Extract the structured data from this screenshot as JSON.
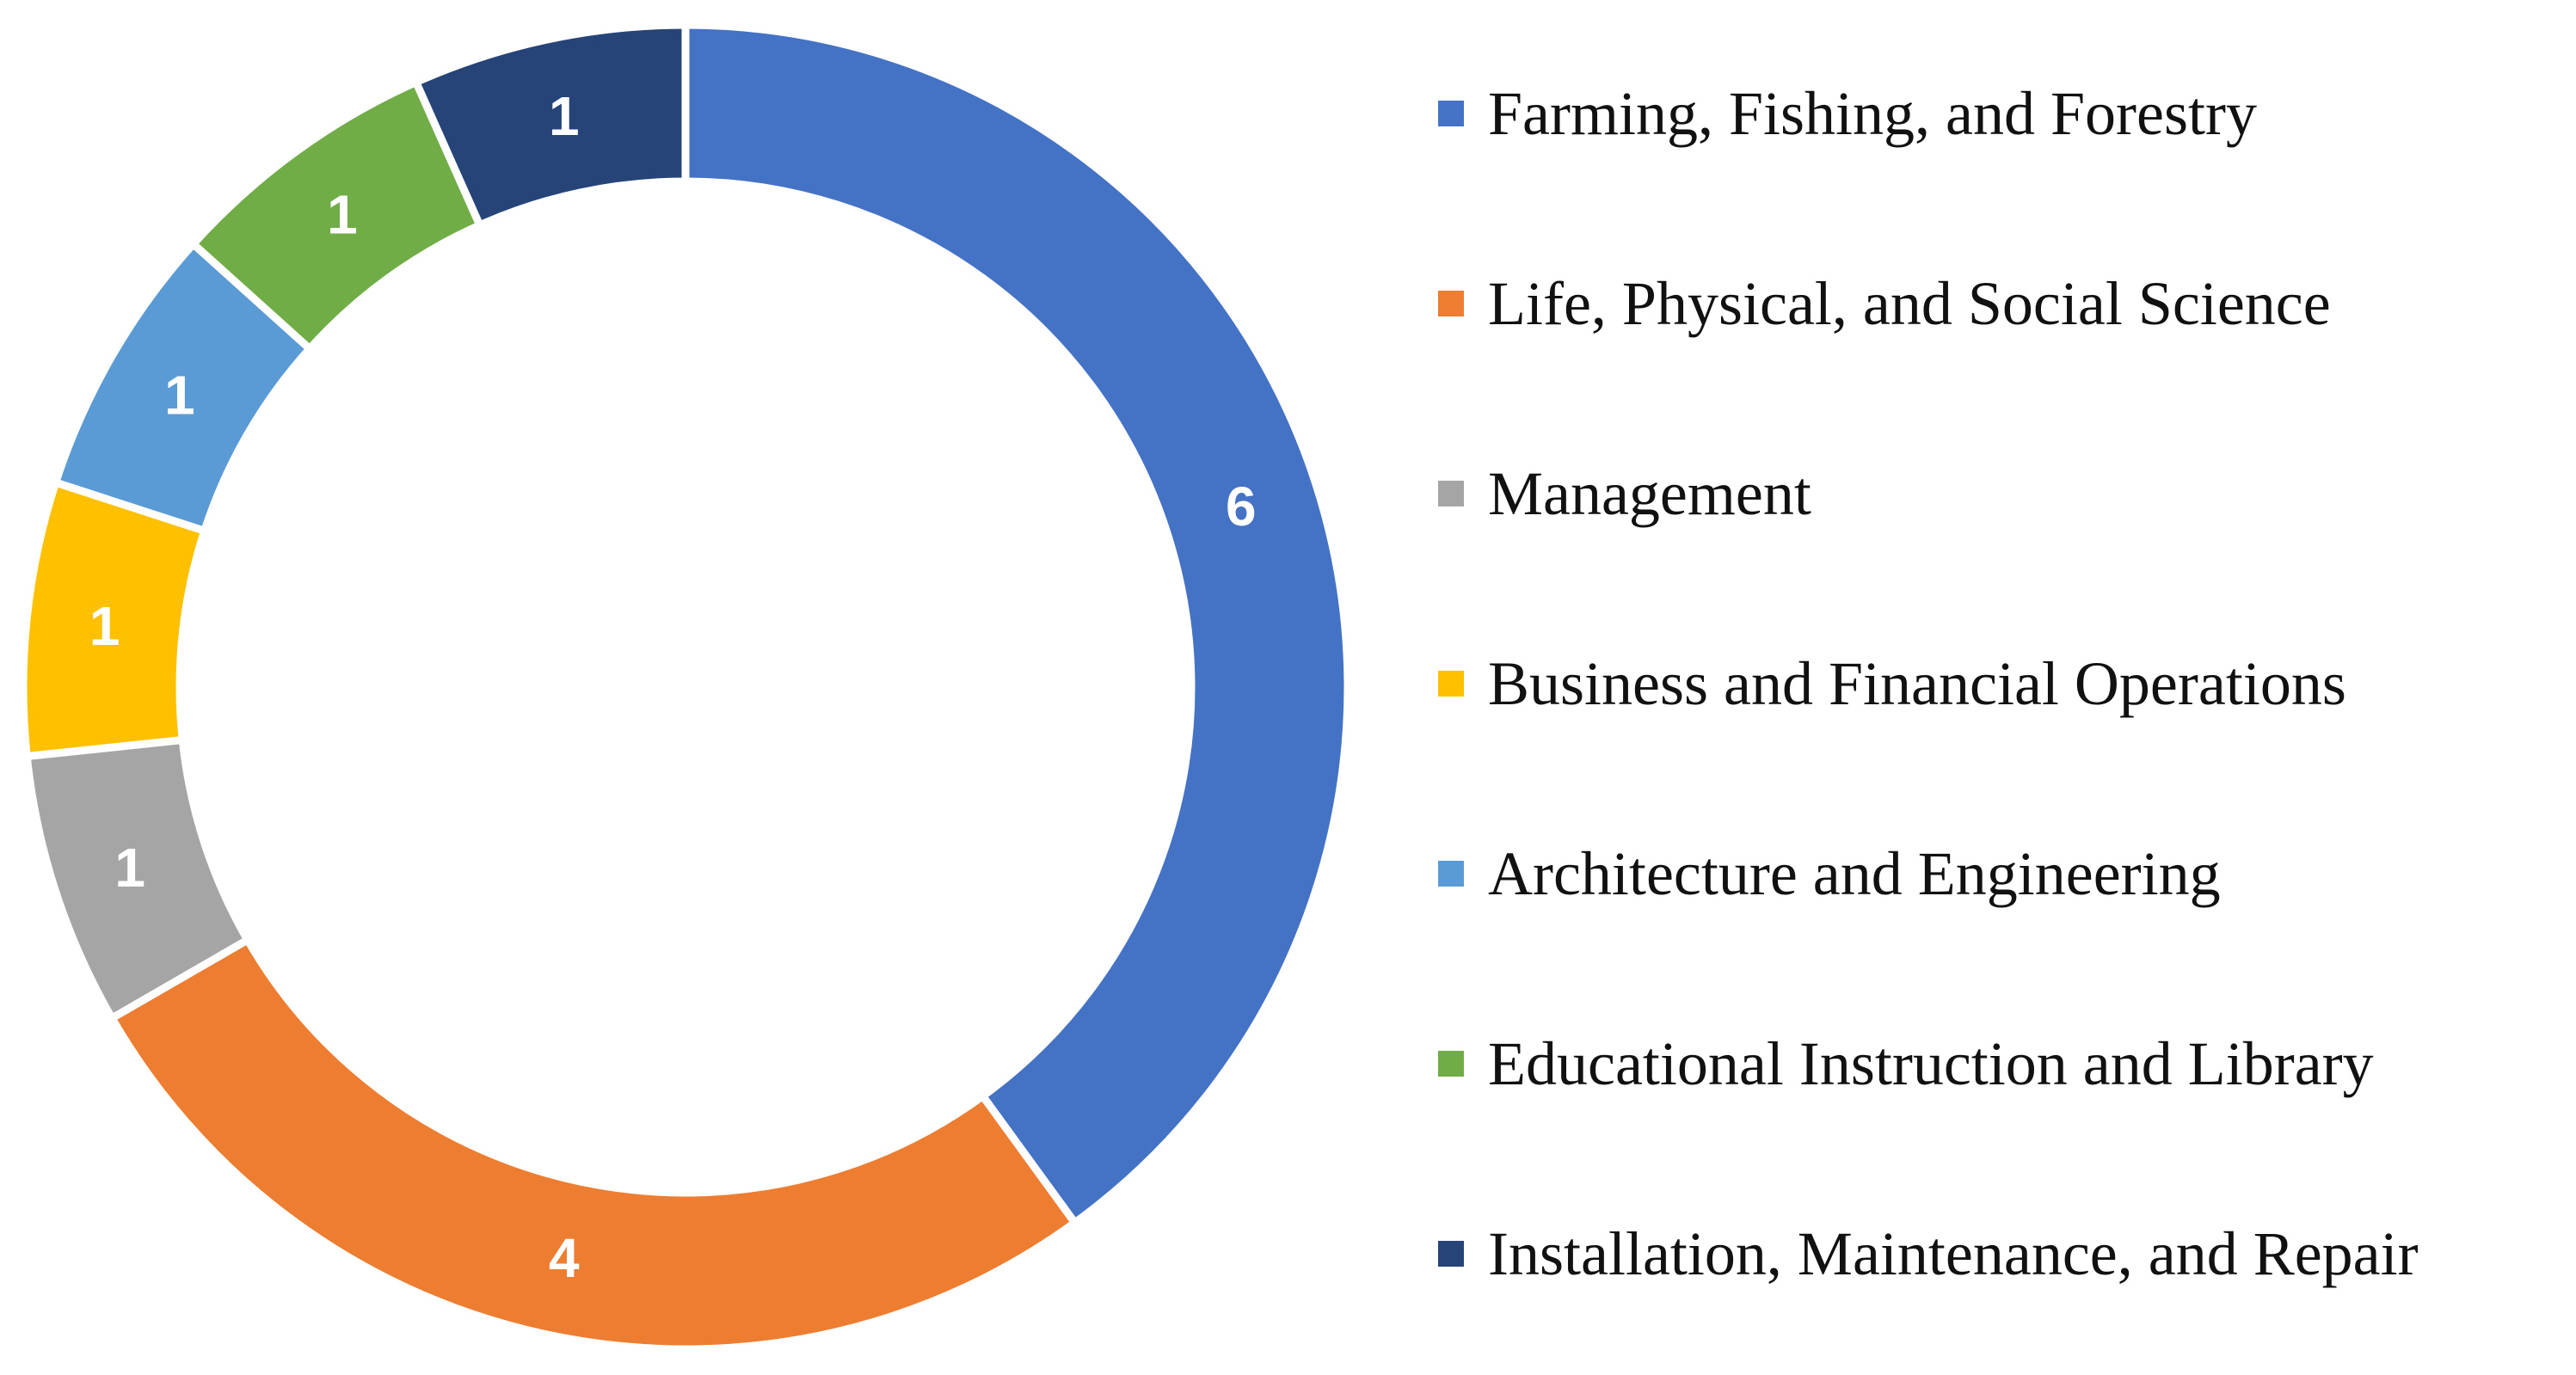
{
  "chart_data": {
    "type": "pie",
    "style": "doughnut",
    "title": "",
    "categories": [
      "Farming, Fishing, and Forestry",
      "Life, Physical, and Social Science",
      "Management",
      "Business and Financial Operations",
      "Architecture and Engineering",
      "Educational Instruction and Library",
      "Installation, Maintenance, and Repair"
    ],
    "values": [
      6,
      4,
      1,
      1,
      1,
      1,
      1
    ],
    "colors": [
      "#4472C4",
      "#ED7D31",
      "#A5A5A5",
      "#FFC000",
      "#5B9BD5",
      "#70AD47",
      "#264478"
    ],
    "data_labels": [
      "6",
      "4",
      "1",
      "1",
      "1",
      "1",
      "1"
    ],
    "legend_position": "right",
    "direction": "clockwise",
    "start": "top"
  }
}
